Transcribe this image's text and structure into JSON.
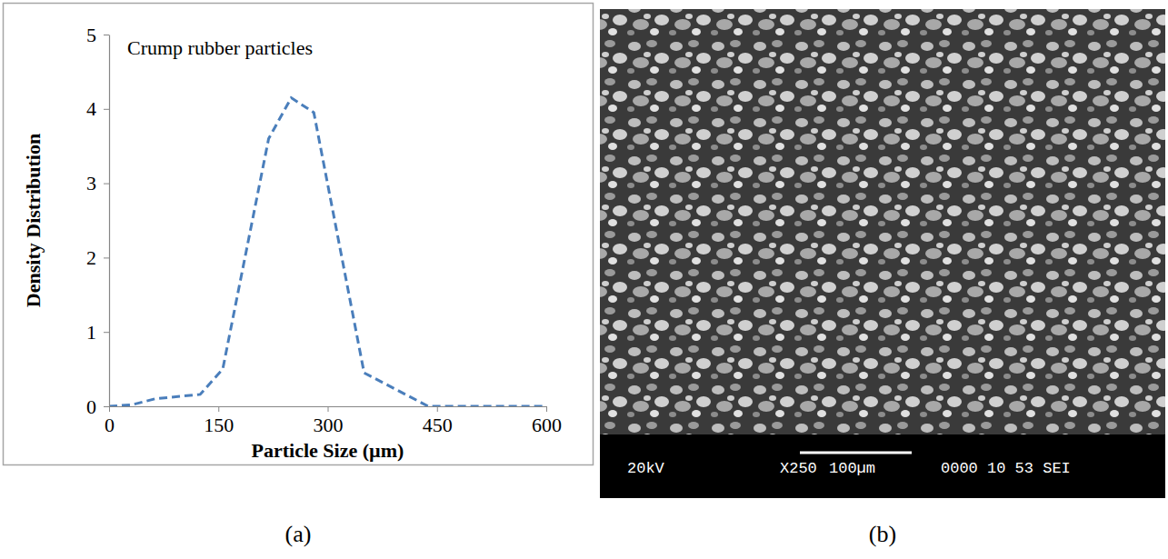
{
  "chart_data": {
    "type": "line",
    "annotation": "Crump rubber particles",
    "xlabel": "Particle Size (µm)",
    "ylabel": "Density Distribution",
    "x": [
      0,
      31,
      63,
      125,
      156,
      219,
      250,
      281,
      350,
      438,
      500,
      600
    ],
    "values": [
      0,
      0.02,
      0.1,
      0.16,
      0.5,
      3.6,
      4.15,
      3.95,
      0.45,
      0,
      0,
      0
    ],
    "color": "#4a7ebb",
    "line_style": "dashed",
    "xlim": [
      0,
      600
    ],
    "xticks": [
      0,
      150,
      300,
      450,
      600
    ],
    "ylim": [
      0,
      5
    ],
    "yticks": [
      0,
      1,
      2,
      3,
      4,
      5
    ],
    "grid": false
  },
  "figure": {
    "panel_labels": [
      "(a)",
      "(b)"
    ],
    "sem_image": {
      "voltage": "20kV",
      "magnification": "X250",
      "scale_bar": "100µm",
      "info": "0000 10 53 SEI"
    }
  }
}
